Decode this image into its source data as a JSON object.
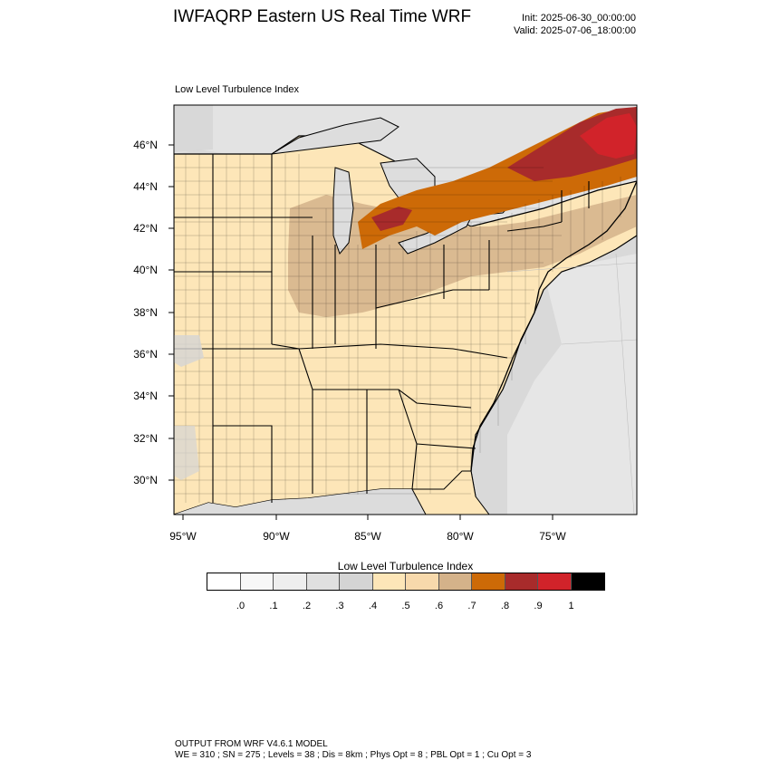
{
  "header": {
    "title": "IWFAQRP Eastern US Real Time WRF",
    "init": "Init: 2025-06-30_00:00:00",
    "valid": "Valid: 2025-07-06_18:00:00"
  },
  "map": {
    "panel_label": "Low Level Turbulence Index",
    "lat_labels": [
      "46°N",
      "44°N",
      "42°N",
      "40°N",
      "38°N",
      "36°N",
      "34°N",
      "32°N",
      "30°N"
    ],
    "lon_labels": [
      "95°W",
      "90°W",
      "85°W",
      "80°W",
      "75°W"
    ]
  },
  "colorbar": {
    "title": "Low Level Turbulence Index",
    "colors": [
      "#ffffff",
      "#f7f7f7",
      "#eeeeee",
      "#e0e0e0",
      "#d4d4d4",
      "#fde6b8",
      "#f7d9ac",
      "#d4b28a",
      "#cd6a07",
      "#a82b2b",
      "#d1232a",
      "#000000"
    ],
    "tick_labels": [
      ".0",
      ".1",
      ".2",
      ".3",
      ".4",
      ".5",
      ".6",
      ".7",
      ".8",
      ".9",
      "1"
    ]
  },
  "footer": {
    "line1": "OUTPUT FROM WRF V4.6.1 MODEL",
    "line2": "WE = 310 ; SN = 275 ; Levels = 38 ; Dis = 8km ; Phys Opt = 8 ; PBL Opt = 1 ; Cu Opt = 3"
  },
  "colors": {
    "land": "#fde6b8",
    "ocean": "#d9d9d9",
    "lake": "#dddddd",
    "moderate": "#d4b28a",
    "high": "#cd6a07",
    "very_high": "#a82b2b",
    "extreme": "#d1232a"
  }
}
